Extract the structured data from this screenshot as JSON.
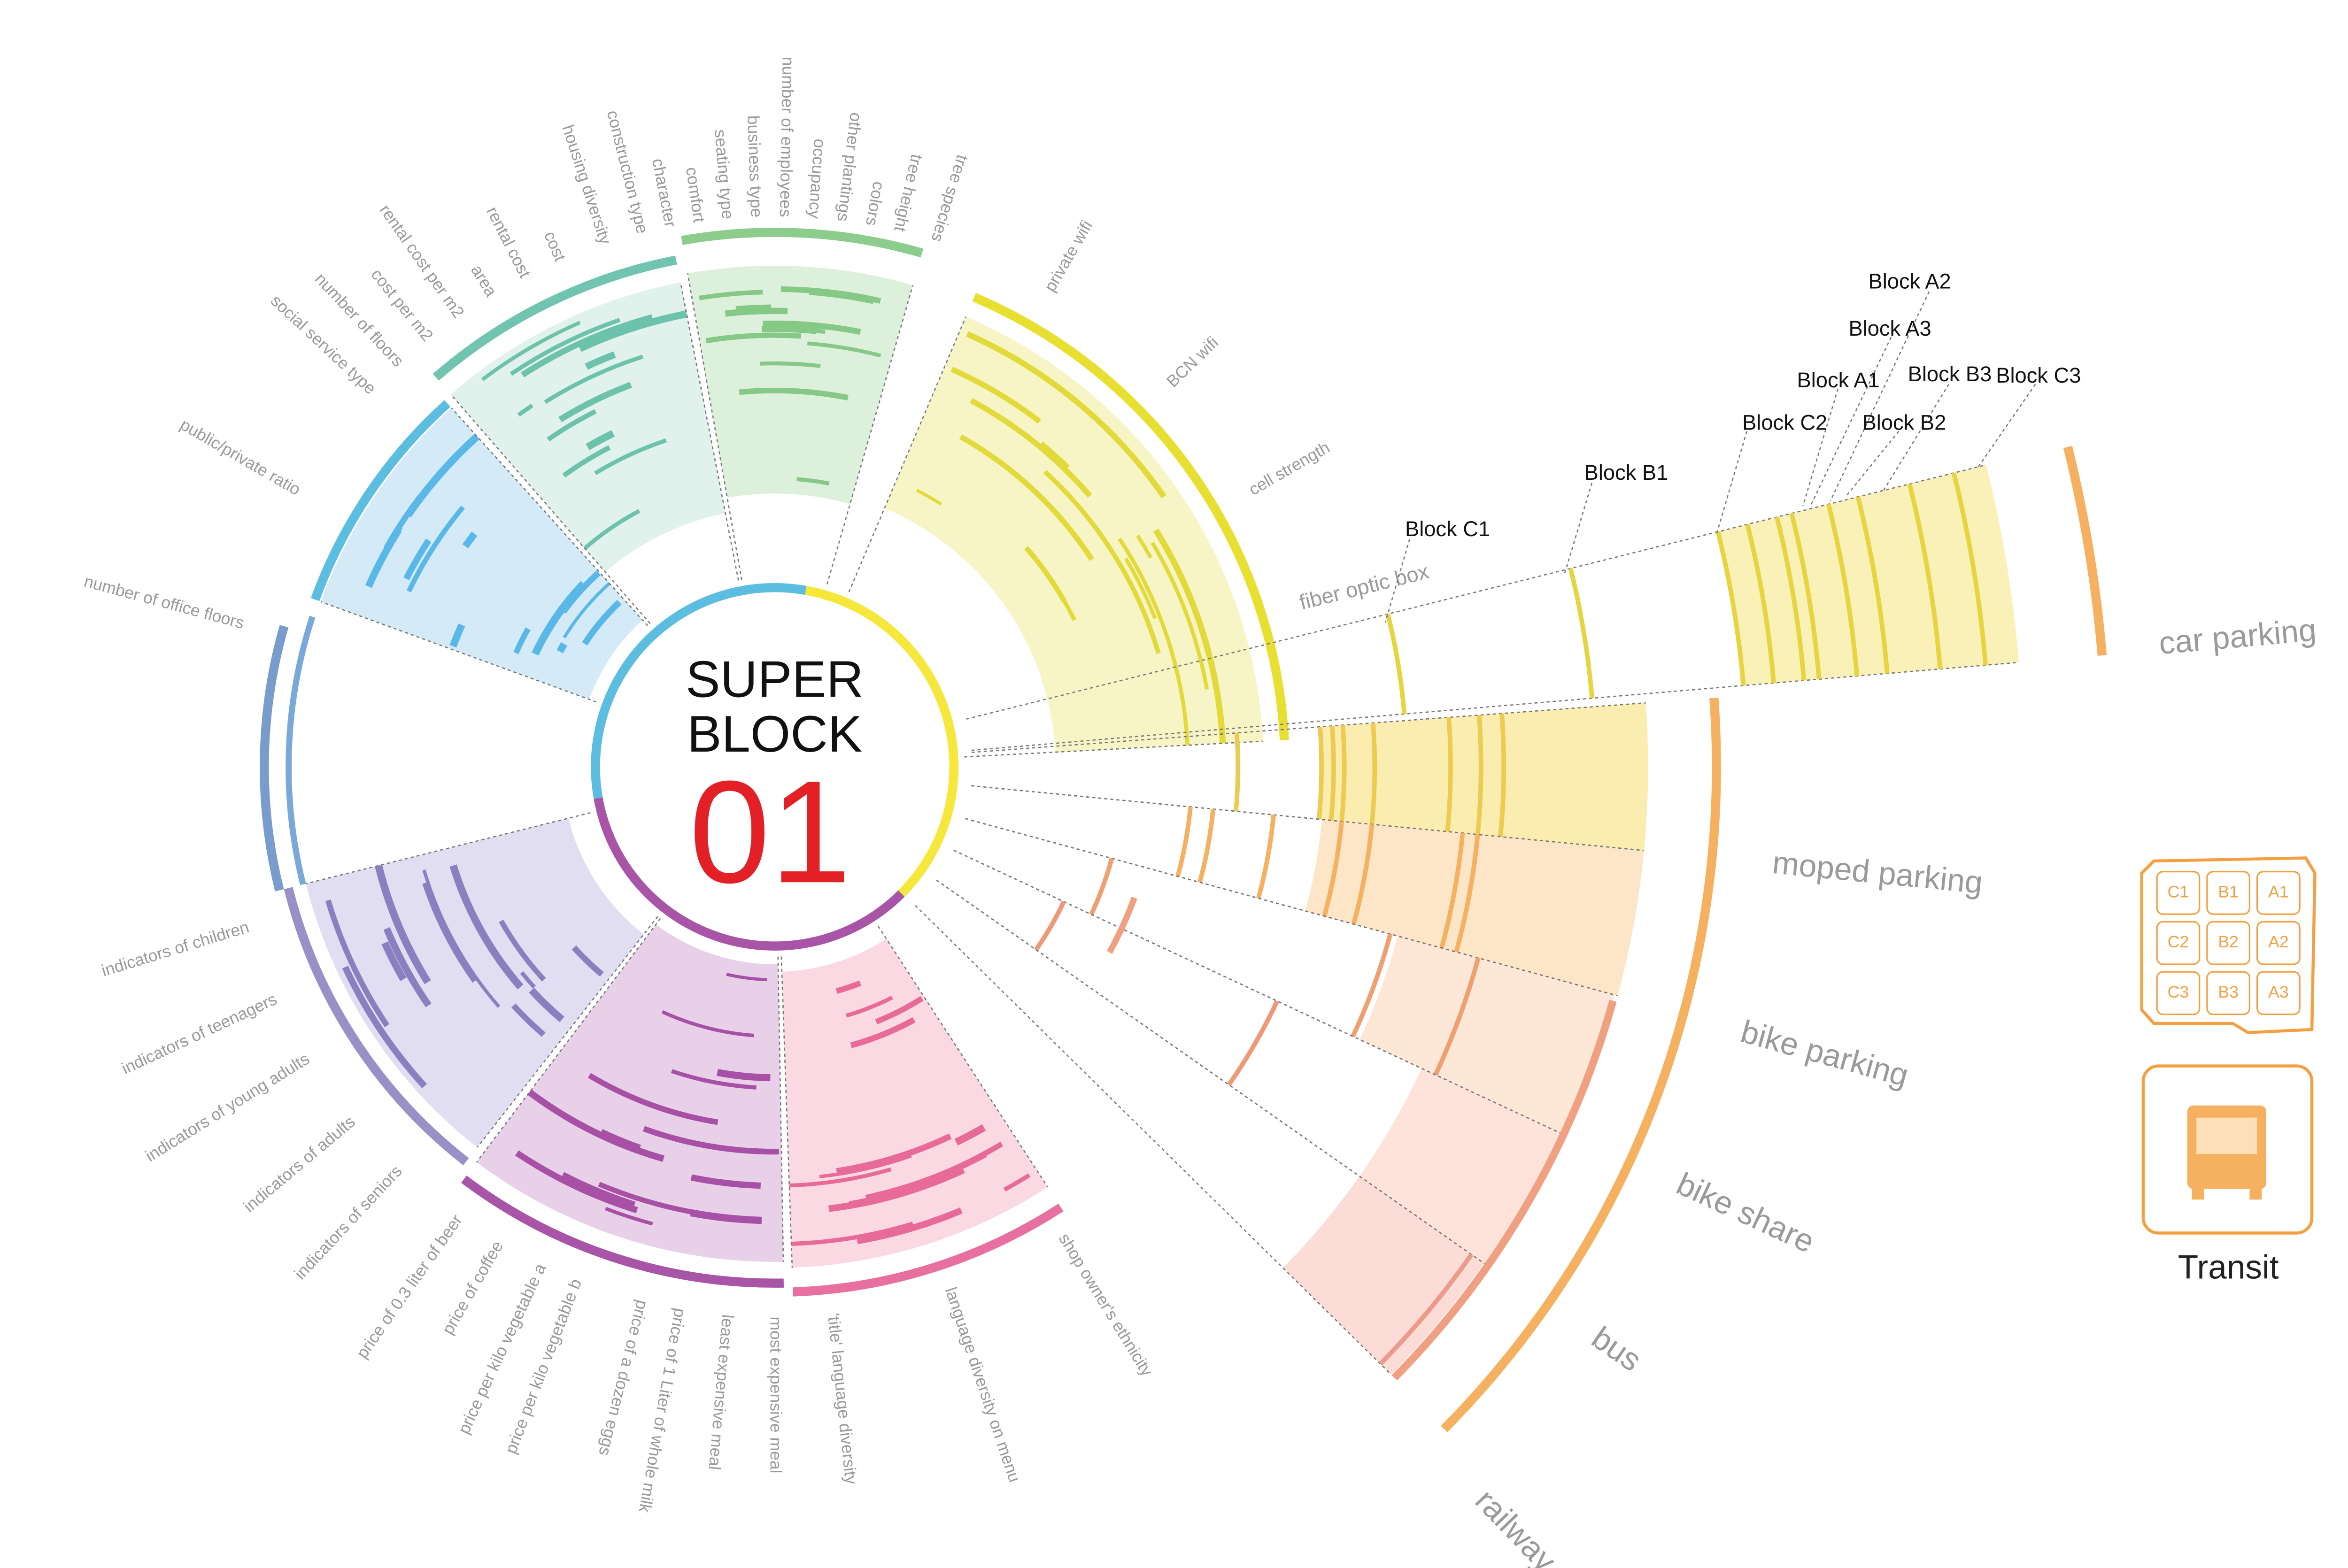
{
  "center": {
    "line1": "SUPER",
    "line2": "BLOCK",
    "number": "01"
  },
  "attributes": [
    "tree species",
    "tree height",
    "colors",
    "other plantings",
    "occupancy",
    "number of employees",
    "business type",
    "seating type",
    "comfort",
    "character",
    "construction type",
    "housing diversity",
    "cost",
    "rental cost",
    "area",
    "rental cost per m2",
    "cost per m2",
    "number of floors",
    "social service type",
    "public/private ratio",
    "number of office floors",
    "indicators of children",
    "indicators of teenagers",
    "indicators of young adults",
    "indicators of adults",
    "indicators of seniors",
    "price of 0.3 liter of beer",
    "price of coffee",
    "price per kilo vegetable a",
    "price per kilo vegetable b",
    "price of a dozen eggs",
    "price of 1 Liter of whole milk",
    "least expensive meal",
    "most expensive meal",
    "'title' language diversity",
    "language diversity on menu",
    "shop owner's ethnicity",
    "private wifi",
    "BCN wifi",
    "cell strength"
  ],
  "fiber_label": "fiber optic box",
  "transit_modes": [
    "car parking",
    "moped parking",
    "bike parking",
    "bike share",
    "bus",
    "railway"
  ],
  "blocks": [
    "Block A2",
    "Block A3",
    "Block A1",
    "Block B3",
    "Block C3",
    "Block C2",
    "Block B2",
    "Block B1",
    "Block C1"
  ],
  "map_cells": [
    "C1",
    "B1",
    "A1",
    "C2",
    "B2",
    "A2",
    "C3",
    "B3",
    "A3"
  ],
  "legend_label": "Transit"
}
